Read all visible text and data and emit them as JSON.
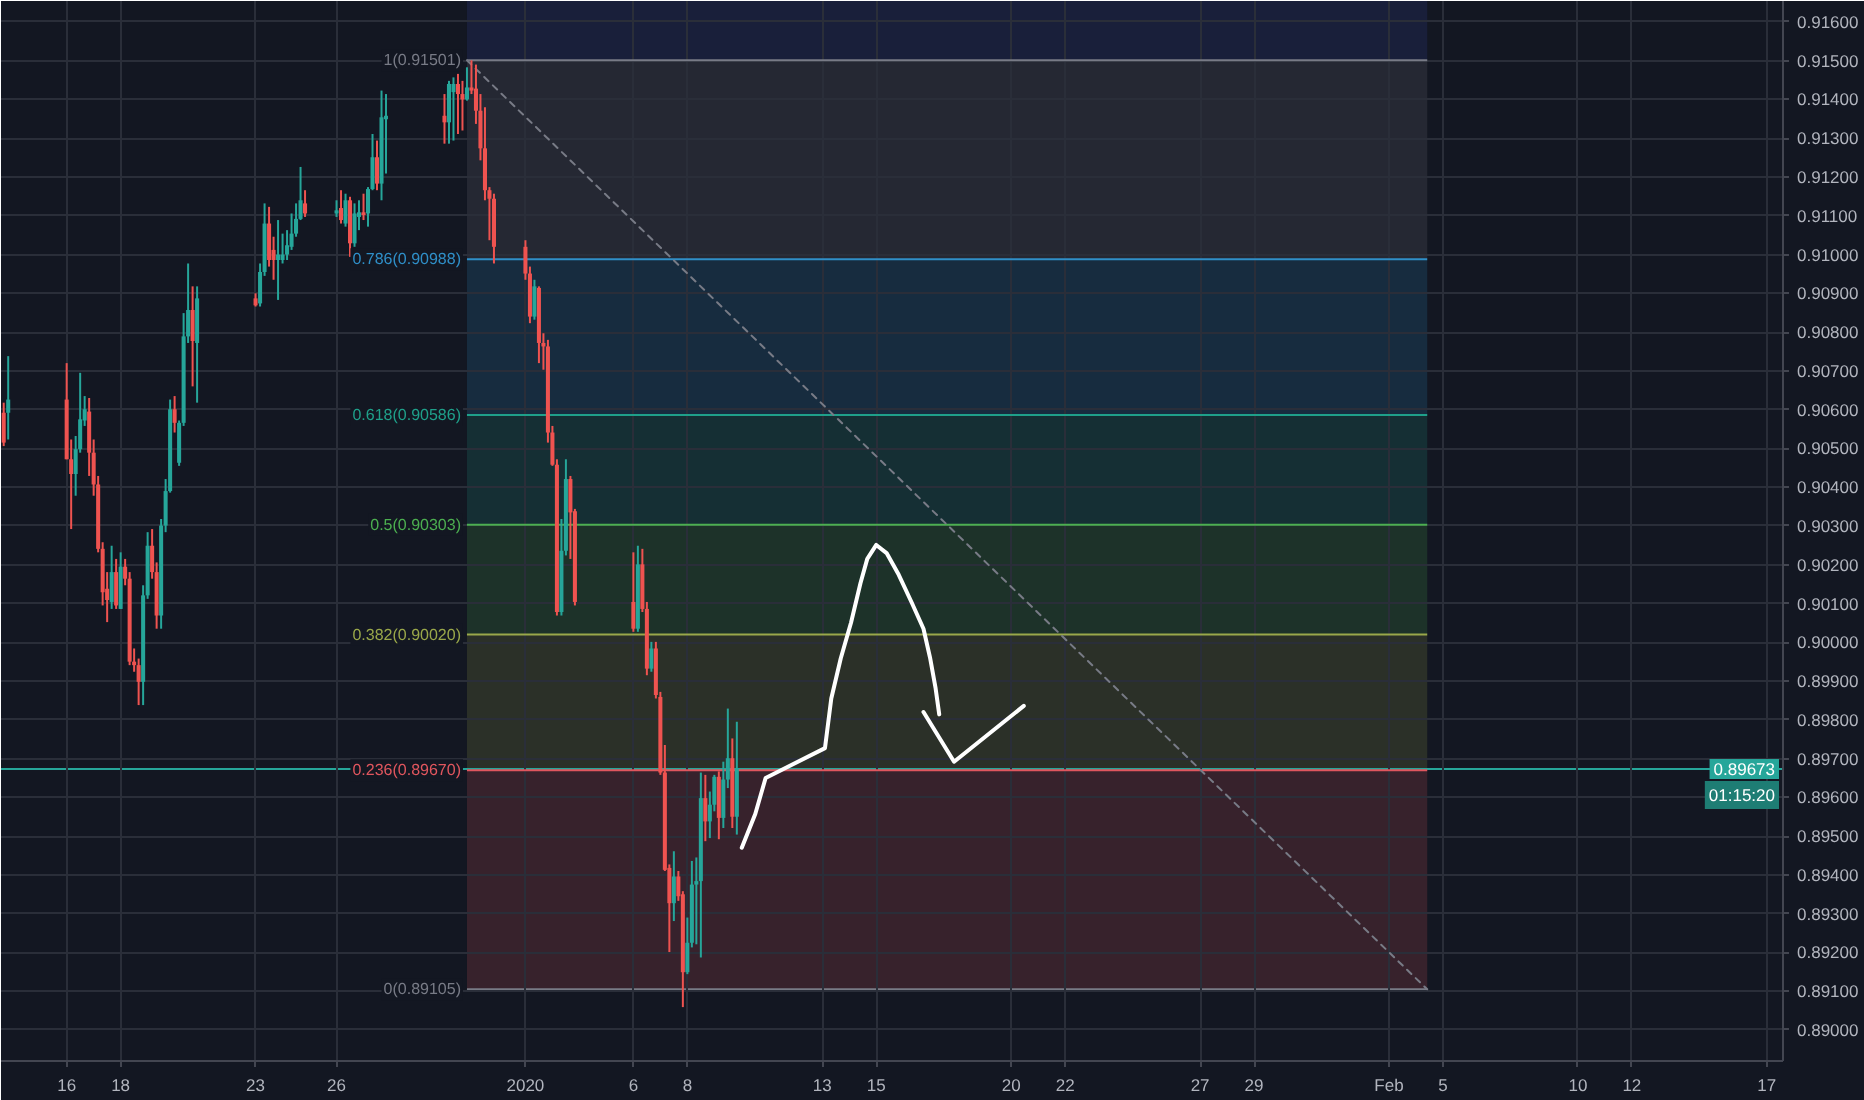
{
  "chart_data": {
    "type": "candlestick",
    "x": [
      "2019-12-13T16:00",
      "2019-12-13T20:00",
      "2019-12-16T00:00",
      "2019-12-16T04:00",
      "2019-12-16T08:00",
      "2019-12-16T12:00",
      "2019-12-16T16:00",
      "2019-12-16T20:00",
      "2019-12-17T00:00",
      "2019-12-17T04:00",
      "2019-12-17T08:00",
      "2019-12-17T12:00",
      "2019-12-17T16:00",
      "2019-12-17T20:00",
      "2019-12-18T00:00",
      "2019-12-18T04:00",
      "2019-12-18T08:00",
      "2019-12-18T12:00",
      "2019-12-18T16:00",
      "2019-12-18T20:00",
      "2019-12-19T00:00",
      "2019-12-19T04:00",
      "2019-12-19T08:00",
      "2019-12-19T12:00",
      "2019-12-19T16:00",
      "2019-12-19T20:00",
      "2019-12-20T00:00",
      "2019-12-20T04:00",
      "2019-12-20T08:00",
      "2019-12-20T12:00",
      "2019-12-20T16:00",
      "2019-12-20T20:00",
      "2019-12-23T00:00",
      "2019-12-23T04:00",
      "2019-12-23T08:00",
      "2019-12-23T12:00",
      "2019-12-23T16:00",
      "2019-12-23T20:00",
      "2019-12-24T00:00",
      "2019-12-24T04:00",
      "2019-12-24T08:00",
      "2019-12-24T12:00",
      "2019-12-24T16:00",
      "2019-12-24T20:00",
      "2019-12-26T00:00",
      "2019-12-26T04:00",
      "2019-12-26T08:00",
      "2019-12-26T12:00",
      "2019-12-26T16:00",
      "2019-12-26T20:00",
      "2019-12-27T00:00",
      "2019-12-27T04:00",
      "2019-12-27T08:00",
      "2019-12-27T12:00",
      "2019-12-27T16:00",
      "2019-12-27T20:00",
      "2019-12-30T00:00",
      "2019-12-30T04:00",
      "2019-12-30T08:00",
      "2019-12-30T12:00",
      "2019-12-30T16:00",
      "2019-12-30T20:00",
      "2019-12-31T00:00",
      "2019-12-31T04:00",
      "2019-12-31T08:00",
      "2019-12-31T12:00",
      "2019-12-31T16:00",
      "2019-12-31T20:00",
      "2020-01-02T00:00",
      "2020-01-02T04:00",
      "2020-01-02T08:00",
      "2020-01-02T12:00",
      "2020-01-02T16:00",
      "2020-01-02T20:00",
      "2020-01-03T00:00",
      "2020-01-03T04:00",
      "2020-01-03T08:00",
      "2020-01-03T12:00",
      "2020-01-03T16:00",
      "2020-01-03T20:00",
      "2020-01-06T00:00",
      "2020-01-06T04:00",
      "2020-01-06T08:00",
      "2020-01-06T12:00",
      "2020-01-06T16:00",
      "2020-01-06T20:00",
      "2020-01-07T00:00",
      "2020-01-07T04:00",
      "2020-01-07T08:00",
      "2020-01-07T12:00",
      "2020-01-07T16:00",
      "2020-01-07T20:00",
      "2020-01-08T00:00",
      "2020-01-08T04:00",
      "2020-01-08T08:00",
      "2020-01-08T12:00",
      "2020-01-08T16:00",
      "2020-01-08T20:00",
      "2020-01-09T00:00",
      "2020-01-09T04:00",
      "2020-01-09T08:00",
      "2020-01-09T12:00",
      "2020-01-09T16:00",
      "2020-01-09T20:00"
    ],
    "ohlc": [
      [
        0.90592,
        0.90618,
        0.90506,
        0.90515
      ],
      [
        0.90592,
        0.90738,
        0.90523,
        0.90626
      ],
      [
        0.90626,
        0.9072,
        0.90472,
        0.90472
      ],
      [
        0.90472,
        0.90523,
        0.90292,
        0.90434
      ],
      [
        0.90434,
        0.90532,
        0.90378,
        0.90498
      ],
      [
        0.90498,
        0.90695,
        0.90489,
        0.90575
      ],
      [
        0.90572,
        0.90635,
        0.90558,
        0.90601
      ],
      [
        0.90595,
        0.9063,
        0.90429,
        0.90489
      ],
      [
        0.90489,
        0.90523,
        0.90378,
        0.90407
      ],
      [
        0.90407,
        0.90429,
        0.90232,
        0.90241
      ],
      [
        0.90241,
        0.90258,
        0.90095,
        0.90129
      ],
      [
        0.90138,
        0.90181,
        0.90052,
        0.90109
      ],
      [
        0.90104,
        0.90249,
        0.90086,
        0.90181
      ],
      [
        0.90181,
        0.90215,
        0.90086,
        0.90095
      ],
      [
        0.90086,
        0.90232,
        0.90086,
        0.90195
      ],
      [
        0.90195,
        0.90215,
        0.90147,
        0.90164
      ],
      [
        0.90164,
        0.90181,
        0.89941,
        0.8995
      ],
      [
        0.8995,
        0.89984,
        0.89924,
        0.89941
      ],
      [
        0.89941,
        0.89958,
        0.89838,
        0.89898
      ],
      [
        0.89898,
        0.90147,
        0.89838,
        0.90121
      ],
      [
        0.90121,
        0.90284,
        0.90112,
        0.90249
      ],
      [
        0.90249,
        0.90292,
        0.90164,
        0.90181
      ],
      [
        0.90181,
        0.90206,
        0.90035,
        0.90069
      ],
      [
        0.90069,
        0.90318,
        0.90035,
        0.90301
      ],
      [
        0.90301,
        0.90421,
        0.90284,
        0.9039
      ],
      [
        0.9039,
        0.90626,
        0.90386,
        0.90601
      ],
      [
        0.90601,
        0.90635,
        0.90541,
        0.90566
      ],
      [
        0.90463,
        0.90572,
        0.90455,
        0.90566
      ],
      [
        0.90566,
        0.90849,
        0.90558,
        0.90789
      ],
      [
        0.90789,
        0.90977,
        0.90772,
        0.90857
      ],
      [
        0.90857,
        0.90918,
        0.9066,
        0.90777
      ],
      [
        0.90772,
        0.90918,
        0.90618,
        0.90887
      ],
      [
        0.90887,
        0.909,
        0.90866,
        0.90869
      ],
      [
        0.90874,
        0.90977,
        0.90866,
        0.90955
      ],
      [
        0.90955,
        0.91132,
        0.90945,
        0.9108
      ],
      [
        0.9108,
        0.91123,
        0.90969,
        0.90986
      ],
      [
        0.91012,
        0.91046,
        0.90935,
        0.90986
      ],
      [
        0.90986,
        0.91089,
        0.90883,
        0.91
      ],
      [
        0.90986,
        0.91054,
        0.90977,
        0.91
      ],
      [
        0.91,
        0.91063,
        0.90986,
        0.91024
      ],
      [
        0.9102,
        0.91106,
        0.91012,
        0.91054
      ],
      [
        0.91054,
        0.91132,
        0.91046,
        0.91092
      ],
      [
        0.91092,
        0.91226,
        0.91089,
        0.9114
      ],
      [
        0.91132,
        0.91166,
        0.91097,
        0.91106
      ],
      [
        0.91106,
        0.9114,
        0.91097,
        0.91114
      ],
      [
        0.9112,
        0.91166,
        0.9108,
        0.91089
      ],
      [
        0.9108,
        0.91157,
        0.91072,
        0.9114
      ],
      [
        0.9114,
        0.91149,
        0.90994,
        0.91029
      ],
      [
        0.91029,
        0.91132,
        0.9102,
        0.91106
      ],
      [
        0.91097,
        0.9114,
        0.91063,
        0.91109
      ],
      [
        0.91109,
        0.91157,
        0.91089,
        0.91102
      ],
      [
        0.91106,
        0.91174,
        0.91072,
        0.91169
      ],
      [
        0.91169,
        0.91311,
        0.91166,
        0.91251
      ],
      [
        0.91251,
        0.91294,
        0.91166,
        0.91183
      ],
      [
        0.91183,
        0.91423,
        0.9114,
        0.91354
      ],
      [
        0.91349,
        0.91414,
        0.91209,
        0.91358
      ],
      [
        0.91358,
        0.91414,
        0.91286,
        0.91341
      ],
      [
        0.91341,
        0.91448,
        0.91286,
        0.9144
      ],
      [
        0.91419,
        0.91457,
        0.91294,
        0.9144
      ],
      [
        0.9144,
        0.91466,
        0.91311,
        0.91414
      ],
      [
        0.91414,
        0.91448,
        0.9132,
        0.914
      ],
      [
        0.914,
        0.91483,
        0.91397,
        0.91431
      ],
      [
        0.91431,
        0.91501,
        0.91414,
        0.91423
      ],
      [
        0.91428,
        0.9149,
        0.91337,
        0.91371
      ],
      [
        0.91371,
        0.91414,
        0.91243,
        0.91274
      ],
      [
        0.91274,
        0.9138,
        0.9114,
        0.91166
      ],
      [
        0.91166,
        0.91174,
        0.91037,
        0.91144
      ],
      [
        0.91144,
        0.91157,
        0.90977,
        0.9102
      ],
      [
        0.9102,
        0.91037,
        0.90935,
        0.90951
      ],
      [
        0.90951,
        0.90969,
        0.90823,
        0.9084
      ],
      [
        0.9084,
        0.90935,
        0.90832,
        0.90918
      ],
      [
        0.90914,
        0.90918,
        0.9072,
        0.90772
      ],
      [
        0.90772,
        0.90797,
        0.90703,
        0.90763
      ],
      [
        0.90763,
        0.9078,
        0.90515,
        0.90541
      ],
      [
        0.90541,
        0.90558,
        0.90455,
        0.90458
      ],
      [
        0.90458,
        0.90472,
        0.90069,
        0.90078
      ],
      [
        0.90078,
        0.90318,
        0.90069,
        0.90236
      ],
      [
        0.90236,
        0.90472,
        0.90224,
        0.90421
      ],
      [
        0.90421,
        0.90429,
        0.90215,
        0.90335
      ],
      [
        0.90338,
        0.90344,
        0.90095,
        0.90104
      ],
      [
        0.90104,
        0.90232,
        0.90027,
        0.90035
      ],
      [
        0.90035,
        0.90249,
        0.90027,
        0.90201
      ],
      [
        0.90201,
        0.90241,
        0.90078,
        0.90086
      ],
      [
        0.90086,
        0.90104,
        0.89915,
        0.89932
      ],
      [
        0.89932,
        0.90001,
        0.89924,
        0.89984
      ],
      [
        0.89984,
        0.90001,
        0.89855,
        0.89864
      ],
      [
        0.89859,
        0.89872,
        0.89658,
        0.89664
      ],
      [
        0.89664,
        0.89735,
        0.8941,
        0.89413
      ],
      [
        0.89418,
        0.89427,
        0.89201,
        0.89327
      ],
      [
        0.89327,
        0.89461,
        0.89281,
        0.89396
      ],
      [
        0.89396,
        0.8941,
        0.89333,
        0.89345
      ],
      [
        0.8935,
        0.89358,
        0.89059,
        0.89149
      ],
      [
        0.89149,
        0.8929,
        0.89144,
        0.89225
      ],
      [
        0.89225,
        0.89436,
        0.89213,
        0.89375
      ],
      [
        0.89375,
        0.89445,
        0.89221,
        0.89384
      ],
      [
        0.89384,
        0.89664,
        0.89187,
        0.89598
      ],
      [
        0.89598,
        0.89658,
        0.89487,
        0.89538
      ],
      [
        0.89538,
        0.89615,
        0.89495,
        0.89581
      ],
      [
        0.89581,
        0.89658,
        0.89564,
        0.89653
      ],
      [
        0.89653,
        0.89667,
        0.89492,
        0.89547
      ],
      [
        0.89547,
        0.89692,
        0.89521,
        0.89646
      ],
      [
        0.89646,
        0.89829,
        0.89624,
        0.89701
      ],
      [
        0.89701,
        0.89752,
        0.89521,
        0.8955
      ],
      [
        0.8955,
        0.89795,
        0.89504,
        0.89673
      ]
    ],
    "colors": [
      "#ef5350",
      "#26a69a",
      "#ef5350",
      "#ef5350",
      "#26a69a",
      "#26a69a",
      "#26a69a",
      "#ef5350",
      "#ef5350",
      "#ef5350",
      "#ef5350",
      "#ef5350",
      "#26a69a",
      "#ef5350",
      "#26a69a",
      "#ef5350",
      "#ef5350",
      "#ef5350",
      "#ef5350",
      "#26a69a",
      "#26a69a",
      "#ef5350",
      "#ef5350",
      "#26a69a",
      "#26a69a",
      "#26a69a",
      "#ef5350",
      "#26a69a",
      "#26a69a",
      "#26a69a",
      "#ef5350",
      "#26a69a",
      "#ef5350",
      "#26a69a",
      "#26a69a",
      "#ef5350",
      "#ef5350",
      "#26a69a",
      "#26a69a",
      "#26a69a",
      "#26a69a",
      "#26a69a",
      "#26a69a",
      "#ef5350",
      "#26a69a",
      "#ef5350",
      "#26a69a",
      "#ef5350",
      "#26a69a",
      "#26a69a",
      "#ef5350",
      "#26a69a",
      "#26a69a",
      "#ef5350",
      "#26a69a",
      "#26a69a",
      "#ef5350",
      "#26a69a",
      "#26a69a",
      "#ef5350",
      "#ef5350",
      "#26a69a",
      "#ef5350",
      "#ef5350",
      "#ef5350",
      "#ef5350",
      "#ef5350",
      "#ef5350",
      "#ef5350",
      "#ef5350",
      "#26a69a",
      "#ef5350",
      "#ef5350",
      "#ef5350",
      "#ef5350",
      "#ef5350",
      "#26a69a",
      "#26a69a",
      "#ef5350",
      "#ef5350",
      "#ef5350",
      "#26a69a",
      "#ef5350",
      "#ef5350",
      "#26a69a",
      "#ef5350",
      "#ef5350",
      "#ef5350",
      "#ef5350",
      "#26a69a",
      "#ef5350",
      "#ef5350",
      "#26a69a",
      "#26a69a",
      "#26a69a",
      "#26a69a",
      "#ef5350",
      "#26a69a",
      "#26a69a",
      "#ef5350",
      "#26a69a",
      "#26a69a",
      "#ef5350",
      "#26a69a"
    ],
    "series": [
      {
        "type": "line",
        "x": [
          "2019-12-30T20:00",
          "2020-02-04T10:00"
        ],
        "values": [
          0.91501,
          0.89105
        ],
        "color": "#787b86",
        "line_style": "dashed"
      },
      {
        "type": "line",
        "x": [
          "2020-01-10T00:24",
          "2020-01-10T12:24",
          "2020-01-10T21:36",
          "2020-01-13T02:24",
          "2020-01-13T08:00",
          "2020-01-13T16:24",
          "2020-01-14T01:36",
          "2020-01-14T10:00",
          "2020-01-14T16:00",
          "2020-01-15T00:00",
          "2020-01-15T09:12",
          "2020-01-15T20:00",
          "2020-01-16T07:36",
          "2020-01-16T18:00",
          "2020-01-17T00:00",
          "2020-01-17T04:48",
          "2020-01-17T08:00"
        ],
        "values": [
          0.8947,
          0.89557,
          0.8965,
          0.89727,
          0.89855,
          0.89958,
          0.90051,
          0.90153,
          0.90215,
          0.90251,
          0.9023,
          0.90174,
          0.90102,
          0.90035,
          0.89958,
          0.89881,
          0.89814
        ],
        "color": "#ffffff"
      },
      {
        "type": "line",
        "x": [
          "2020-01-16T18:00",
          "2020-01-17T21:12",
          "2020-01-20T11:12"
        ],
        "values": [
          0.8982,
          0.89692,
          0.89836
        ],
        "color": "#ffffff"
      }
    ],
    "bands": [
      {
        "axis": "y",
        "from": 0.91501,
        "to": 0.91654,
        "color": "#3949ab"
      },
      {
        "axis": "y",
        "from": 0.90988,
        "to": 0.91501,
        "label": "1(0.91501)",
        "color": "#787b86"
      },
      {
        "axis": "y",
        "from": 0.90586,
        "to": 0.90988,
        "label": "0.786(0.90988)",
        "color": "#2f8fc8"
      },
      {
        "axis": "y",
        "from": 0.90303,
        "to": 0.90586,
        "label": "0.618(0.90586)",
        "color": "#1fa08a"
      },
      {
        "axis": "y",
        "from": 0.9002,
        "to": 0.90303,
        "label": "0.5(0.90303)",
        "color": "#4caf50"
      },
      {
        "axis": "y",
        "from": 0.8967,
        "to": 0.9002,
        "label": "0.382(0.90020)",
        "color": "#9aa84a"
      },
      {
        "axis": "y",
        "from": 0.89105,
        "to": 0.8967,
        "label": "0.236(0.89670)",
        "color": "#e0565e"
      }
    ],
    "ref_lines": [
      {
        "axis": "y",
        "value": 0.89105,
        "label": "0(0.89105)",
        "color": "#787b86"
      },
      {
        "axis": "y",
        "value": 0.89673,
        "color": "#26a69a"
      }
    ],
    "annotations": [
      {
        "text": "0.89673",
        "y": 0.89673
      },
      "01:15:20"
    ],
    "xlim": [
      "2019-12-13T13:36",
      "2020-02-17T14:24"
    ],
    "ylim": [
      0.8892,
      0.91654
    ],
    "xticks": [
      {
        "value": "2019-12-16",
        "label": "16"
      },
      {
        "value": "2019-12-18",
        "label": "18"
      },
      {
        "value": "2019-12-23",
        "label": "23"
      },
      {
        "value": "2019-12-26",
        "label": "26"
      },
      {
        "value": "2020-01-02",
        "label": "2020"
      },
      {
        "value": "2020-01-06",
        "label": "6"
      },
      {
        "value": "2020-01-08",
        "label": "8"
      },
      {
        "value": "2020-01-13",
        "label": "13"
      },
      {
        "value": "2020-01-15",
        "label": "15"
      },
      {
        "value": "2020-01-20",
        "label": "20"
      },
      {
        "value": "2020-01-22",
        "label": "22"
      },
      {
        "value": "2020-01-27",
        "label": "27"
      },
      {
        "value": "2020-01-29",
        "label": "29"
      },
      {
        "value": "2020-02-03",
        "label": "Feb"
      },
      {
        "value": "2020-02-05",
        "label": "5"
      },
      {
        "value": "2020-02-10",
        "label": "10"
      },
      {
        "value": "2020-02-12",
        "label": "12"
      },
      {
        "value": "2020-02-17",
        "label": "17"
      }
    ],
    "yticks": [
      {
        "value": 0.89,
        "label": "0.89000"
      },
      {
        "value": 0.891,
        "label": "0.89100"
      },
      {
        "value": 0.892,
        "label": "0.89200"
      },
      {
        "value": 0.893,
        "label": "0.89300"
      },
      {
        "value": 0.894,
        "label": "0.89400"
      },
      {
        "value": 0.895,
        "label": "0.89500"
      },
      {
        "value": 0.896,
        "label": "0.89600"
      },
      {
        "value": 0.897,
        "label": "0.89700"
      },
      {
        "value": 0.898,
        "label": "0.89800"
      },
      {
        "value": 0.899,
        "label": "0.89900"
      },
      {
        "value": 0.9,
        "label": "0.90000"
      },
      {
        "value": 0.901,
        "label": "0.90100"
      },
      {
        "value": 0.902,
        "label": "0.90200"
      },
      {
        "value": 0.903,
        "label": "0.90300"
      },
      {
        "value": 0.904,
        "label": "0.90400"
      },
      {
        "value": 0.905,
        "label": "0.90500"
      },
      {
        "value": 0.906,
        "label": "0.90600"
      },
      {
        "value": 0.907,
        "label": "0.90700"
      },
      {
        "value": 0.908,
        "label": "0.90800"
      },
      {
        "value": 0.909,
        "label": "0.90900"
      },
      {
        "value": 0.91,
        "label": "0.91000"
      },
      {
        "value": 0.911,
        "label": "0.91100"
      },
      {
        "value": 0.912,
        "label": "0.91200"
      },
      {
        "value": 0.913,
        "label": "0.91300"
      },
      {
        "value": 0.914,
        "label": "0.91400"
      },
      {
        "value": 0.915,
        "label": "0.91500"
      },
      {
        "value": 0.916,
        "label": "0.91600"
      }
    ],
    "grid": true
  }
}
